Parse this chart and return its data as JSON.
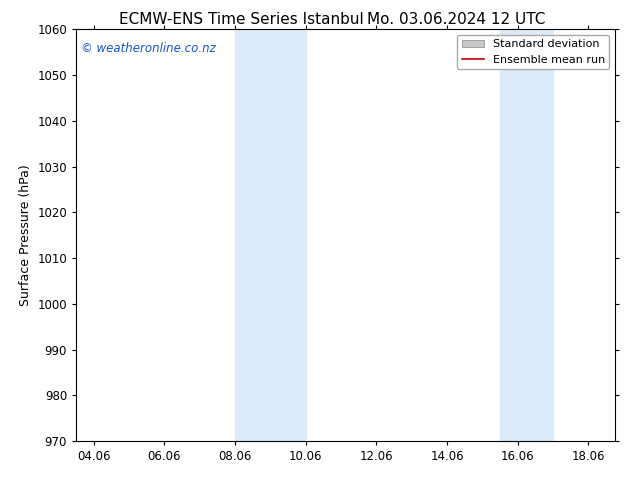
{
  "title_left": "ECMW-ENS Time Series Istanbul",
  "title_right": "Mo. 03.06.2024 12 UTC",
  "ylabel": "Surface Pressure (hPa)",
  "ylim": [
    970,
    1060
  ],
  "yticks": [
    970,
    980,
    990,
    1000,
    1010,
    1020,
    1030,
    1040,
    1050,
    1060
  ],
  "xlim_start": 3.5,
  "xlim_end": 18.75,
  "xtick_labels": [
    "04.06",
    "06.06",
    "08.06",
    "10.06",
    "12.06",
    "14.06",
    "16.06",
    "18.06"
  ],
  "xtick_positions": [
    4,
    6,
    8,
    10,
    12,
    14,
    16,
    18
  ],
  "shaded_bands": [
    {
      "x_start": 8.0,
      "x_end": 10.0
    },
    {
      "x_start": 15.5,
      "x_end": 17.0
    }
  ],
  "watermark_text": "© weatheronline.co.nz",
  "watermark_color": "#1155cc",
  "legend_std_label": "Standard deviation",
  "legend_mean_label": "Ensemble mean run",
  "legend_std_color": "#c8c8c8",
  "legend_mean_color": "#cc0000",
  "bg_color": "#ffffff",
  "plot_bg_color": "#ffffff",
  "shade_color": "#daeaf8",
  "title_fontsize": 11,
  "tick_fontsize": 8.5,
  "ylabel_fontsize": 9,
  "watermark_fontsize": 8.5,
  "legend_fontsize": 8
}
